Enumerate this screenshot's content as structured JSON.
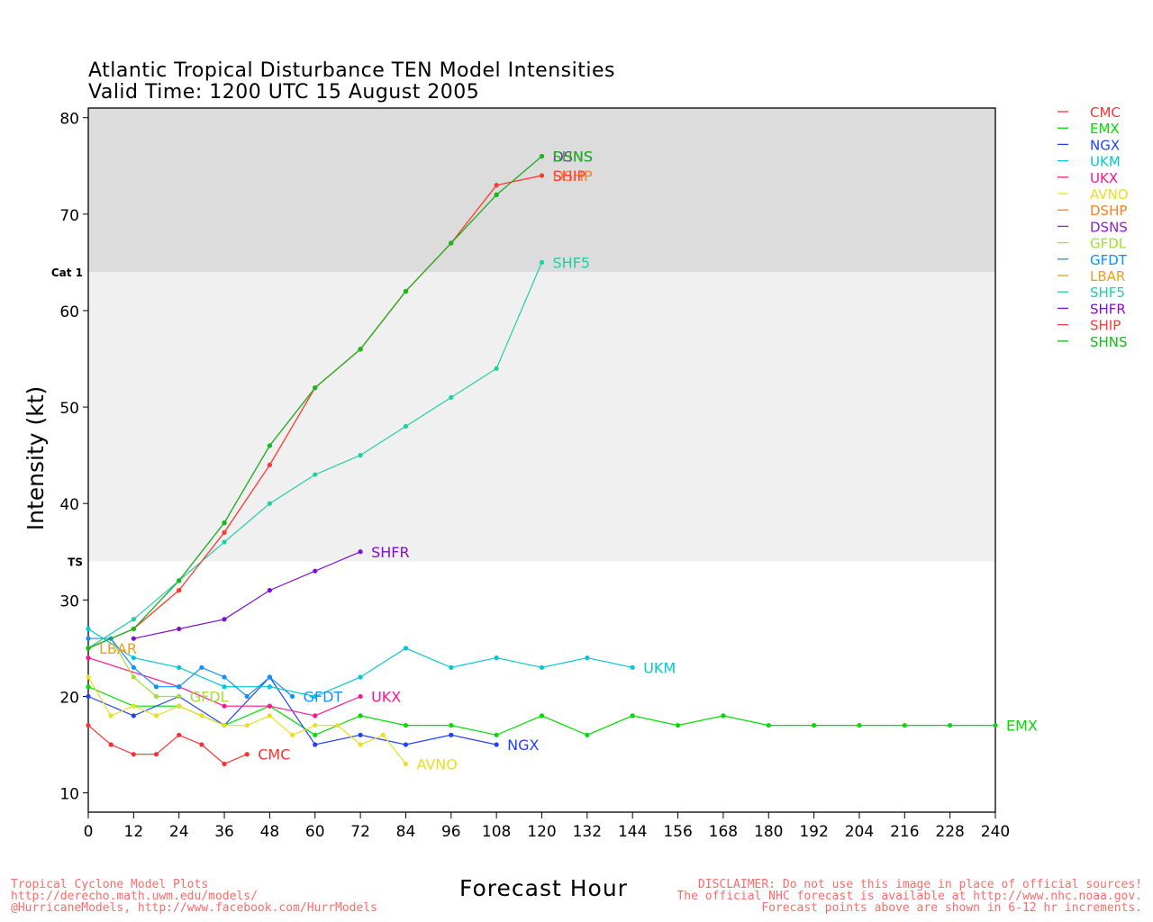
{
  "title": "Atlantic Tropical Disturbance TEN Model Intensities",
  "subtitle": "Valid Time: 1200 UTC 15 August 2005",
  "footer": {
    "left": [
      "Tropical Cyclone Model Plots",
      "http://derecho.math.uwm.edu/models/",
      "@HurricaneModels, http://www.facebook.com/HurrModels"
    ],
    "right": [
      "DISCLAIMER: Do not use this image in place of official sources!",
      "The official NHC forecast is available at http://www.nhc.noaa.gov.",
      "Forecast points above are shown in 6-12 hr increments."
    ]
  },
  "chart_data": {
    "type": "line",
    "xlabel": "Forecast Hour",
    "ylabel": "Intensity (kt)",
    "xlim": [
      0,
      240
    ],
    "ylim": [
      8,
      81
    ],
    "xticks": [
      0,
      12,
      24,
      36,
      48,
      60,
      72,
      84,
      96,
      108,
      120,
      132,
      144,
      156,
      168,
      180,
      192,
      204,
      216,
      228,
      240
    ],
    "yticks": [
      10,
      20,
      30,
      40,
      50,
      60,
      70,
      80
    ],
    "bands": [
      {
        "from": 34,
        "to": 64,
        "color": "#f0f0f0",
        "label": "TS",
        "label_at": 34
      },
      {
        "from": 64,
        "to": 81,
        "color": "#dcdcdc",
        "label": "Cat 1",
        "label_at": 64
      }
    ],
    "legend_position": "right",
    "series": [
      {
        "name": "CMC",
        "color": "#ff3030",
        "x": [
          0,
          6,
          12,
          18,
          24,
          30,
          36,
          42
        ],
        "y": [
          17,
          15,
          14,
          14,
          16,
          15,
          13,
          14
        ]
      },
      {
        "name": "EMX",
        "color": "#00dd00",
        "x": [
          0,
          12,
          24,
          36,
          48,
          60,
          72,
          84,
          96,
          108,
          120,
          132,
          144,
          156,
          168,
          180,
          192,
          204,
          216,
          228,
          240
        ],
        "y": [
          21,
          19,
          19,
          17,
          19,
          16,
          18,
          17,
          17,
          16,
          18,
          16,
          18,
          17,
          18,
          17,
          17,
          17,
          17,
          17,
          17
        ]
      },
      {
        "name": "NGX",
        "color": "#2040ff",
        "x": [
          0,
          12,
          24,
          36,
          48,
          60,
          72,
          84,
          96,
          108
        ],
        "y": [
          20,
          18,
          20,
          17,
          22,
          15,
          16,
          15,
          16,
          15
        ]
      },
      {
        "name": "UKM",
        "color": "#00c8d2",
        "x": [
          0,
          12,
          24,
          36,
          48,
          60,
          72,
          84,
          96,
          108,
          120,
          132,
          144
        ],
        "y": [
          27,
          24,
          23,
          21,
          21,
          20,
          22,
          25,
          23,
          24,
          23,
          24,
          23
        ]
      },
      {
        "name": "UKX",
        "color": "#ff1493",
        "x": [
          0,
          24,
          36,
          48,
          60,
          72
        ],
        "y": [
          24,
          21,
          19,
          19,
          18,
          20
        ]
      },
      {
        "name": "AVNO",
        "color": "#e8e020",
        "x": [
          0,
          6,
          12,
          18,
          24,
          30,
          36,
          42,
          48,
          54,
          60,
          66,
          72,
          78,
          84
        ],
        "y": [
          22,
          18,
          19,
          18,
          19,
          18,
          17,
          17,
          18,
          16,
          17,
          17,
          15,
          16,
          13
        ]
      },
      {
        "name": "DSHP",
        "color": "#ff7f20",
        "x": [
          0,
          12,
          24,
          36,
          48,
          60,
          72,
          84,
          96,
          108,
          120
        ],
        "y": [
          25,
          27,
          31,
          37,
          44,
          52,
          56,
          62,
          67,
          73,
          74
        ]
      },
      {
        "name": "DSNS",
        "color": "#9020d0",
        "x": [
          0,
          12,
          24,
          36,
          48,
          60,
          72,
          84,
          96,
          108,
          120
        ],
        "y": [
          25,
          27,
          32,
          38,
          46,
          52,
          56,
          62,
          67,
          72,
          76
        ]
      },
      {
        "name": "GFDL",
        "color": "#a0e030",
        "x": [
          0,
          6,
          12,
          18,
          24
        ],
        "y": [
          25,
          26,
          22,
          20,
          20
        ]
      },
      {
        "name": "GFDT",
        "color": "#1090ff",
        "x": [
          0,
          6,
          12,
          18,
          24,
          30,
          36,
          42,
          48,
          54
        ],
        "y": [
          26,
          26,
          23,
          21,
          21,
          23,
          22,
          20,
          22,
          20
        ]
      },
      {
        "name": "LBAR",
        "color": "#e8a020",
        "x": [
          0
        ],
        "y": [
          25
        ]
      },
      {
        "name": "SHF5",
        "color": "#20d0a0",
        "x": [
          0,
          12,
          24,
          36,
          48,
          60,
          72,
          84,
          96,
          108,
          120
        ],
        "y": [
          25,
          28,
          32,
          36,
          40,
          43,
          45,
          48,
          51,
          54,
          65
        ]
      },
      {
        "name": "SHFR",
        "color": "#8010d0",
        "x": [
          12,
          24,
          36,
          48,
          60,
          72
        ],
        "y": [
          26,
          27,
          28,
          31,
          33,
          35
        ]
      },
      {
        "name": "SHIP",
        "color": "#ff3a3a",
        "x": [
          0,
          12,
          24,
          36,
          48,
          60,
          72,
          84,
          96,
          108,
          120
        ],
        "y": [
          25,
          27,
          31,
          37,
          44,
          52,
          56,
          62,
          67,
          73,
          74
        ]
      },
      {
        "name": "SHNS",
        "color": "#10c010",
        "x": [
          0,
          12,
          24,
          36,
          48,
          60,
          72,
          84,
          96,
          108,
          120
        ],
        "y": [
          25,
          27,
          32,
          38,
          46,
          52,
          56,
          62,
          67,
          72,
          76
        ]
      }
    ],
    "end_labels": [
      {
        "series": "CMC",
        "text": "CMC",
        "x": 42,
        "y": 14
      },
      {
        "series": "EMX",
        "text": "EMX",
        "x": 240,
        "y": 17
      },
      {
        "series": "NGX",
        "text": "NGX",
        "x": 108,
        "y": 15
      },
      {
        "series": "UKM",
        "text": "UKM",
        "x": 144,
        "y": 23
      },
      {
        "series": "UKX",
        "text": "UKX",
        "x": 72,
        "y": 20
      },
      {
        "series": "AVNO",
        "text": "AVNO",
        "x": 84,
        "y": 13
      },
      {
        "series": "DSHP",
        "text": "DSHP",
        "x": 120,
        "y": 74
      },
      {
        "series": "DSNS",
        "text": "DSNS",
        "x": 120,
        "y": 76
      },
      {
        "series": "GFDL",
        "text": "GFDL",
        "x": 24,
        "y": 20
      },
      {
        "series": "GFDT",
        "text": "GFDT",
        "x": 54,
        "y": 20
      },
      {
        "series": "LBAR",
        "text": "LBAR",
        "x": 0,
        "y": 25
      },
      {
        "series": "SHF5",
        "text": "SHF5",
        "x": 120,
        "y": 65
      },
      {
        "series": "SHFR",
        "text": "SHFR",
        "x": 72,
        "y": 35
      },
      {
        "series": "SHIP",
        "text": "SHIP",
        "x": 120,
        "y": 74
      },
      {
        "series": "SHNS",
        "text": "SHNS",
        "x": 120,
        "y": 76
      }
    ]
  }
}
